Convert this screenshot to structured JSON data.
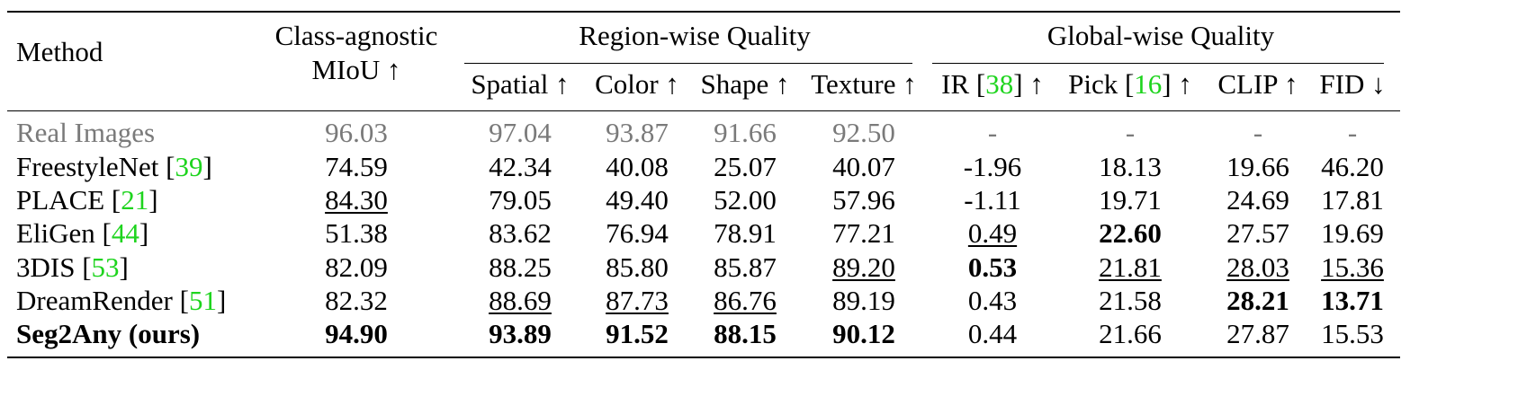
{
  "header": {
    "method": "Method",
    "class_agnostic_line1": "Class-agnostic",
    "class_agnostic_line2": "MIoU ↑",
    "region_group": "Region-wise Quality",
    "global_group": "Global-wise Quality",
    "spatial": "Spatial ↑",
    "color": "Color ↑",
    "shape": "Shape ↑",
    "texture": "Texture ↑",
    "ir_pre": "IR [",
    "ir_ref": "38",
    "ir_post": "] ↑",
    "pick_pre": "Pick [",
    "pick_ref": "16",
    "pick_post": "] ↑",
    "clip": "CLIP ↑",
    "fid": "FID ↓"
  },
  "rows": [
    {
      "method": "Real Images",
      "ref": "",
      "miou": "96.03",
      "spatial": "97.04",
      "color": "93.87",
      "shape": "91.66",
      "texture": "92.50",
      "ir": "-",
      "pick": "-",
      "clip": "-",
      "fid": "-"
    },
    {
      "method": "FreestyleNet [",
      "ref": "39",
      "miou": "74.59",
      "spatial": "42.34",
      "color": "40.08",
      "shape": "25.07",
      "texture": "40.07",
      "ir": "-1.96",
      "pick": "18.13",
      "clip": "19.66",
      "fid": "46.20"
    },
    {
      "method": "PLACE [",
      "ref": "21",
      "miou": "84.30",
      "spatial": "79.05",
      "color": "49.40",
      "shape": "52.00",
      "texture": "57.96",
      "ir": "-1.11",
      "pick": "19.71",
      "clip": "24.69",
      "fid": "17.81"
    },
    {
      "method": "EliGen [",
      "ref": "44",
      "miou": "51.38",
      "spatial": "83.62",
      "color": "76.94",
      "shape": "78.91",
      "texture": "77.21",
      "ir": "0.49",
      "pick": "22.60",
      "clip": "27.57",
      "fid": "19.69"
    },
    {
      "method": "3DIS [",
      "ref": "53",
      "miou": "82.09",
      "spatial": "88.25",
      "color": "85.80",
      "shape": "85.87",
      "texture": "89.20",
      "ir": "0.53",
      "pick": "21.81",
      "clip": "28.03",
      "fid": "15.36"
    },
    {
      "method": "DreamRender [",
      "ref": "51",
      "miou": "82.32",
      "spatial": "88.69",
      "color": "87.73",
      "shape": "86.76",
      "texture": "89.19",
      "ir": "0.43",
      "pick": "21.58",
      "clip": "28.21",
      "fid": "13.71"
    },
    {
      "method": "Seg2Any (ours)",
      "ref": "",
      "miou": "94.90",
      "spatial": "93.89",
      "color": "91.52",
      "shape": "88.15",
      "texture": "90.12",
      "ir": "0.44",
      "pick": "21.66",
      "clip": "27.87",
      "fid": "15.53"
    }
  ],
  "ref_close": "]"
}
